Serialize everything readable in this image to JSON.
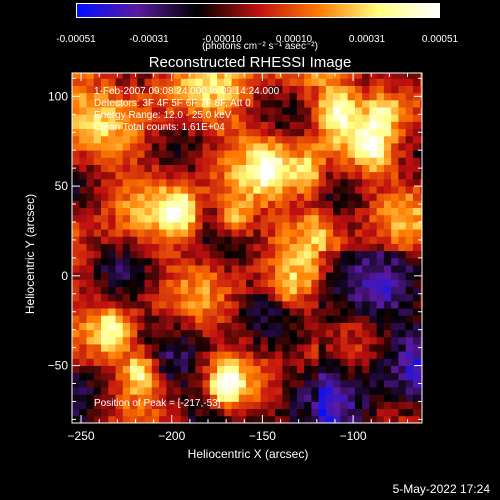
{
  "colorbar": {
    "tick_labels": [
      "-0.00051",
      "-0.00031",
      "-0.00010",
      "0.00010",
      "0.00031",
      "0.00051"
    ],
    "units": "(photons cm⁻² s⁻¹ asec⁻²)",
    "colors": [
      "#0010ff",
      "#5a1aa0",
      "#000000",
      "#c01010",
      "#ff7a00",
      "#ffff80",
      "#ffffff"
    ]
  },
  "chart_data": {
    "type": "heatmap",
    "title": "Reconstructed RHESSI Image",
    "xlabel": "Heliocentric X (arcsec)",
    "ylabel": "Heliocentric Y (arcsec)",
    "xlim": [
      -255,
      -62
    ],
    "ylim": [
      -82,
      113
    ],
    "x_ticks": [
      -250,
      -200,
      -150,
      -100
    ],
    "y_ticks": [
      -50,
      0,
      50,
      100
    ],
    "annotations": [
      "1-Feb-2007 09:08:24.000 to 09:14:24.000",
      "Detectors: 3F 4F 5F 6F 7F 8F, Att 0",
      "Energy Range: 12.0 - 25.0 keV",
      "Clean     Total counts: 1.61E+04"
    ],
    "peak_label": "Position of Peak = [-217,-53]",
    "peak": [
      -217,
      -53
    ],
    "bright_sources": [
      {
        "x": -217,
        "y": -53,
        "value": 0.00051
      },
      {
        "x": -170,
        "y": -60,
        "value": 0.00045
      },
      {
        "x": -232,
        "y": -30,
        "value": 0.0003
      },
      {
        "x": -195,
        "y": 36,
        "value": 0.00042
      },
      {
        "x": -165,
        "y": 32,
        "value": 0.00035
      },
      {
        "x": -146,
        "y": 60,
        "value": 0.0003
      },
      {
        "x": -125,
        "y": 57,
        "value": 0.00036
      },
      {
        "x": -110,
        "y": 92,
        "value": 0.0003
      },
      {
        "x": -90,
        "y": 72,
        "value": 0.00028
      },
      {
        "x": -82,
        "y": 95,
        "value": 0.00028
      },
      {
        "x": -135,
        "y": -8,
        "value": 0.00027
      },
      {
        "x": -120,
        "y": 28,
        "value": 0.00022
      }
    ]
  },
  "footer": {
    "timestamp": "5-May-2022 17:24"
  }
}
